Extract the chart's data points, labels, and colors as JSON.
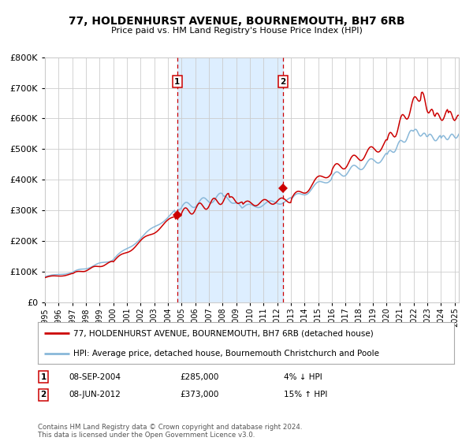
{
  "title": "77, HOLDENHURST AVENUE, BOURNEMOUTH, BH7 6RB",
  "subtitle": "Price paid vs. HM Land Registry's House Price Index (HPI)",
  "legend_line1": "77, HOLDENHURST AVENUE, BOURNEMOUTH, BH7 6RB (detached house)",
  "legend_line2": "HPI: Average price, detached house, Bournemouth Christchurch and Poole",
  "annotation1_date": "08-SEP-2004",
  "annotation1_price": "£285,000",
  "annotation1_hpi": "4% ↓ HPI",
  "annotation2_date": "08-JUN-2012",
  "annotation2_price": "£373,000",
  "annotation2_hpi": "15% ↑ HPI",
  "footer": "Contains HM Land Registry data © Crown copyright and database right 2024.\nThis data is licensed under the Open Government Licence v3.0.",
  "red_line_color": "#cc0000",
  "blue_line_color": "#89b8d9",
  "shade_color": "#ddeeff",
  "dashed_line_color": "#cc0000",
  "background_color": "#ffffff",
  "grid_color": "#cccccc",
  "ylim": [
    0,
    800000
  ],
  "yticks": [
    0,
    100000,
    200000,
    300000,
    400000,
    500000,
    600000,
    700000,
    800000
  ],
  "sale1_x": 2004.69,
  "sale1_y": 285000,
  "sale2_x": 2012.44,
  "sale2_y": 373000,
  "shade_x1": 2004.69,
  "shade_x2": 2012.44,
  "xlim_min": 1995,
  "xlim_max": 2025.3
}
